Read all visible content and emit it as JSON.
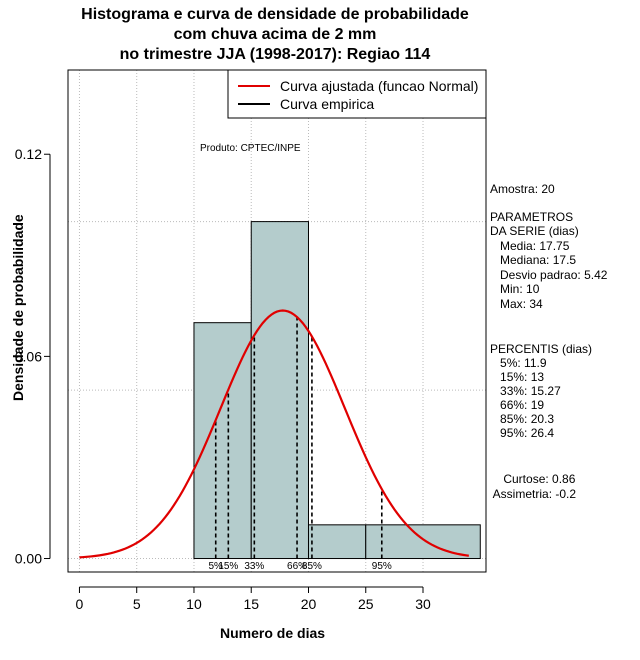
{
  "chart_data": {
    "type": "histogram",
    "title_lines": [
      "Histograma e curva de densidade de probabilidade",
      "com chuva acima de 2 mm",
      "no trimestre JJA (1998-2017): Regiao 114"
    ],
    "xlabel": "Numero de dias",
    "ylabel": "Densidade de probabilidade",
    "product_credit": "Produto: CPTEC/INPE",
    "xlim": [
      -1,
      35.5
    ],
    "ylim": [
      -0.004,
      0.145
    ],
    "xticks": [
      0,
      5,
      10,
      15,
      20,
      25,
      30
    ],
    "yticks": [
      0.0,
      0.06,
      0.12
    ],
    "ytick_labels": [
      "0.00",
      "0.06",
      "0.12"
    ],
    "grid": true,
    "bins": [
      {
        "x0": 10,
        "x1": 15,
        "density": 0.07
      },
      {
        "x0": 15,
        "x1": 20,
        "density": 0.1
      },
      {
        "x0": 20,
        "x1": 25,
        "density": 0.01
      },
      {
        "x0": 25,
        "x1": 35,
        "density": 0.01
      }
    ],
    "bar_color": "#b4cccc",
    "curve": {
      "type": "normal",
      "mean": 17.75,
      "sd": 5.42,
      "x_from": 0,
      "x_to": 34,
      "color": "#e00000"
    },
    "percentile_lines": [
      {
        "label": "5%",
        "value": 11.9
      },
      {
        "label": "15%",
        "value": 13
      },
      {
        "label": "33%",
        "value": 15.27
      },
      {
        "label": "66%",
        "value": 19
      },
      {
        "label": "85%",
        "value": 20.3
      },
      {
        "label": "95%",
        "value": 26.4
      }
    ],
    "legend": [
      {
        "label": "Curva ajustada (funcao Normal)",
        "color": "#e00000"
      },
      {
        "label": "Curva empirica",
        "color": "#000000"
      }
    ],
    "legend_position": "top-right"
  },
  "stats": {
    "sample_label": "Amostra",
    "sample": "20",
    "params_heading_1": "PARAMETROS",
    "params_heading_2": "DA SERIE (dias)",
    "mean_label": "Media",
    "mean": "17.75",
    "median_label": "Mediana",
    "median": "17.5",
    "sd_label": "Desvio padrao",
    "sd": "5.42",
    "min_label": "Min",
    "min": "10",
    "max_label": "Max",
    "max": "34",
    "percentiles_heading": "PERCENTIS (dias)",
    "percentiles": [
      {
        "label": "5%",
        "value": "11.9"
      },
      {
        "label": "15%",
        "value": "13"
      },
      {
        "label": "33%",
        "value": "15.27"
      },
      {
        "label": "66%",
        "value": "19"
      },
      {
        "label": "85%",
        "value": "20.3"
      },
      {
        "label": "95%",
        "value": "26.4"
      }
    ],
    "kurtosis_label": "Curtose",
    "kurtosis": "0.86",
    "skewness_label": "Assimetria",
    "skewness": "-0.2"
  }
}
